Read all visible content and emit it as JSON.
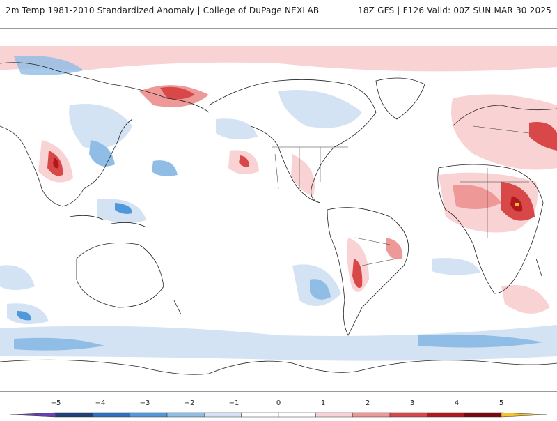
{
  "header": {
    "left_title": "2m Temp 1981-2010 Standardized Anomaly | College of DuPage NEXLAB",
    "right_title": "18Z GFS | F126 Valid: 00Z SUN MAR 30 2025"
  },
  "colorbar": {
    "tick_labels": [
      "−5",
      "−4",
      "−3",
      "−2",
      "−1",
      "0",
      "1",
      "2",
      "3",
      "4",
      "5"
    ],
    "colors": [
      "#6a3fb3",
      "#233f7b",
      "#2e6fbf",
      "#4f98db",
      "#8fbde6",
      "#d3e3f3",
      "#ffffff",
      "#ffffff",
      "#f9d3d3",
      "#ee9898",
      "#d94848",
      "#b3171c",
      "#7a0710",
      "#f2c230"
    ]
  },
  "map_colors": {
    "ocean": "#ffffff",
    "coast": "#222222",
    "border": "#333333",
    "cold_light": "#d3e3f3",
    "cold_mid": "#8fbde6",
    "cold_strong": "#4f98db",
    "warm_light": "#f9d3d3",
    "warm_mid": "#ee9898",
    "warm_strong": "#d94848",
    "warm_extreme": "#b3171c"
  }
}
